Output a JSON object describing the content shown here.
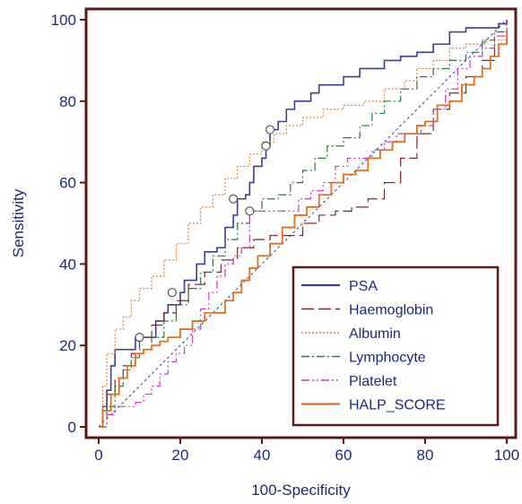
{
  "chart_data": {
    "type": "line",
    "xlabel": "100-Specificity",
    "ylabel": "Sensitivity",
    "xlim": [
      0,
      100
    ],
    "ylim": [
      0,
      100
    ],
    "xticks": [
      "0",
      "20",
      "40",
      "60",
      "80",
      "100"
    ],
    "yticks": [
      "0",
      "20",
      "40",
      "60",
      "80",
      "100"
    ],
    "grid": false,
    "legend_position": "bottom-right",
    "reference_line": [
      [
        0,
        0
      ],
      [
        100,
        100
      ]
    ],
    "series": [
      {
        "name": "PSA",
        "color": "#3a3f8f",
        "style": "solid",
        "points": [
          [
            0,
            0
          ],
          [
            1,
            4
          ],
          [
            2,
            9
          ],
          [
            3,
            15
          ],
          [
            4,
            19
          ],
          [
            7,
            19
          ],
          [
            9,
            22
          ],
          [
            12,
            22
          ],
          [
            14,
            26
          ],
          [
            16,
            28
          ],
          [
            17,
            30
          ],
          [
            19,
            30
          ],
          [
            20,
            33
          ],
          [
            21,
            36
          ],
          [
            24,
            40
          ],
          [
            26,
            43
          ],
          [
            29,
            44
          ],
          [
            31,
            49
          ],
          [
            33,
            52
          ],
          [
            34,
            56
          ],
          [
            36,
            57
          ],
          [
            37,
            60
          ],
          [
            38,
            64
          ],
          [
            40,
            66
          ],
          [
            41,
            69
          ],
          [
            42,
            73
          ],
          [
            44,
            75
          ],
          [
            46,
            78
          ],
          [
            48,
            80
          ],
          [
            50,
            80
          ],
          [
            52,
            82
          ],
          [
            54,
            84
          ],
          [
            58,
            84
          ],
          [
            60,
            86
          ],
          [
            62,
            86
          ],
          [
            64,
            88
          ],
          [
            68,
            88
          ],
          [
            70,
            90
          ],
          [
            74,
            91
          ],
          [
            78,
            92
          ],
          [
            82,
            94
          ],
          [
            86,
            97
          ],
          [
            90,
            98
          ],
          [
            94,
            98
          ],
          [
            98,
            99
          ],
          [
            100,
            100
          ]
        ],
        "markers": [
          [
            33,
            56
          ],
          [
            41,
            69
          ],
          [
            42,
            73
          ]
        ]
      },
      {
        "name": "Haemoglobin",
        "color": "#7a2a2a",
        "style": "longdash",
        "points": [
          [
            0,
            0
          ],
          [
            1,
            5
          ],
          [
            2,
            8
          ],
          [
            4,
            12
          ],
          [
            6,
            15
          ],
          [
            8,
            18
          ],
          [
            10,
            22
          ],
          [
            13,
            25
          ],
          [
            16,
            28
          ],
          [
            19,
            31
          ],
          [
            22,
            35
          ],
          [
            26,
            38
          ],
          [
            30,
            41
          ],
          [
            34,
            44
          ],
          [
            38,
            46
          ],
          [
            42,
            47
          ],
          [
            46,
            47
          ],
          [
            50,
            50
          ],
          [
            54,
            52
          ],
          [
            58,
            53
          ],
          [
            62,
            54
          ],
          [
            66,
            56
          ],
          [
            70,
            60
          ],
          [
            74,
            66
          ],
          [
            78,
            72
          ],
          [
            82,
            78
          ],
          [
            86,
            82
          ],
          [
            90,
            86
          ],
          [
            94,
            90
          ],
          [
            97,
            94
          ],
          [
            100,
            98
          ]
        ]
      },
      {
        "name": "Albumin",
        "color": "#e08030",
        "style": "dotted",
        "points": [
          [
            0,
            0
          ],
          [
            1,
            10
          ],
          [
            2,
            18
          ],
          [
            4,
            24
          ],
          [
            6,
            27
          ],
          [
            8,
            31
          ],
          [
            10,
            34
          ],
          [
            13,
            37
          ],
          [
            16,
            41
          ],
          [
            19,
            45
          ],
          [
            22,
            50
          ],
          [
            25,
            54
          ],
          [
            28,
            57
          ],
          [
            31,
            61
          ],
          [
            34,
            64
          ],
          [
            37,
            67
          ],
          [
            40,
            70
          ],
          [
            43,
            72
          ],
          [
            46,
            74
          ],
          [
            50,
            76
          ],
          [
            55,
            78
          ],
          [
            60,
            79
          ],
          [
            65,
            80
          ],
          [
            70,
            83
          ],
          [
            75,
            85
          ],
          [
            78,
            88
          ],
          [
            82,
            90
          ],
          [
            86,
            93
          ],
          [
            90,
            94
          ],
          [
            95,
            95
          ],
          [
            100,
            95
          ]
        ],
        "markers": [
          [
            18,
            33
          ]
        ]
      },
      {
        "name": "Lymphocyte",
        "color": "#2a7a3a",
        "style": "dashdot",
        "points": [
          [
            0,
            0
          ],
          [
            2,
            5
          ],
          [
            4,
            10
          ],
          [
            6,
            14
          ],
          [
            8,
            17
          ],
          [
            10,
            19
          ],
          [
            13,
            22
          ],
          [
            16,
            26
          ],
          [
            19,
            30
          ],
          [
            22,
            34
          ],
          [
            25,
            38
          ],
          [
            28,
            42
          ],
          [
            31,
            46
          ],
          [
            34,
            50
          ],
          [
            37,
            53
          ],
          [
            40,
            56
          ],
          [
            44,
            57
          ],
          [
            47,
            60
          ],
          [
            50,
            63
          ],
          [
            53,
            66
          ],
          [
            56,
            69
          ],
          [
            60,
            71
          ],
          [
            64,
            74
          ],
          [
            67,
            77
          ],
          [
            70,
            80
          ],
          [
            74,
            83
          ],
          [
            78,
            86
          ],
          [
            82,
            88
          ],
          [
            86,
            90
          ],
          [
            90,
            92
          ],
          [
            94,
            95
          ],
          [
            97,
            97
          ],
          [
            100,
            98
          ]
        ],
        "markers": [
          [
            10,
            22
          ]
        ]
      },
      {
        "name": "Platelet",
        "color": "#c83ac8",
        "style": "dashdotdot",
        "points": [
          [
            0,
            0
          ],
          [
            2,
            3
          ],
          [
            4,
            5
          ],
          [
            7,
            5
          ],
          [
            9,
            6
          ],
          [
            11,
            8
          ],
          [
            13,
            10
          ],
          [
            15,
            13
          ],
          [
            17,
            16
          ],
          [
            19,
            18
          ],
          [
            21,
            20
          ],
          [
            23,
            24
          ],
          [
            25,
            29
          ],
          [
            27,
            33
          ],
          [
            29,
            37
          ],
          [
            31,
            40
          ],
          [
            33,
            42
          ],
          [
            35,
            44
          ],
          [
            37,
            53
          ],
          [
            40,
            53
          ],
          [
            43,
            53
          ],
          [
            46,
            53
          ],
          [
            49,
            56
          ],
          [
            52,
            58
          ],
          [
            55,
            60
          ],
          [
            58,
            64
          ],
          [
            61,
            66
          ],
          [
            64,
            66
          ],
          [
            67,
            68
          ],
          [
            70,
            70
          ],
          [
            73,
            72
          ],
          [
            76,
            72
          ],
          [
            79,
            74
          ],
          [
            82,
            78
          ],
          [
            85,
            83
          ],
          [
            88,
            88
          ],
          [
            91,
            91
          ],
          [
            94,
            93
          ],
          [
            97,
            96
          ],
          [
            100,
            99
          ]
        ],
        "markers": [
          [
            37,
            53
          ]
        ]
      },
      {
        "name": "HALP_SCORE",
        "color": "#e07020",
        "style": "solid",
        "points": [
          [
            0,
            0
          ],
          [
            1,
            4
          ],
          [
            3,
            8
          ],
          [
            5,
            12
          ],
          [
            7,
            15
          ],
          [
            9,
            18
          ],
          [
            11,
            19
          ],
          [
            13,
            20
          ],
          [
            15,
            21
          ],
          [
            17,
            22
          ],
          [
            20,
            24
          ],
          [
            23,
            26
          ],
          [
            26,
            28
          ],
          [
            29,
            28
          ],
          [
            31,
            31
          ],
          [
            33,
            33
          ],
          [
            35,
            36
          ],
          [
            37,
            39
          ],
          [
            39,
            42
          ],
          [
            42,
            45
          ],
          [
            45,
            49
          ],
          [
            48,
            52
          ],
          [
            51,
            54
          ],
          [
            54,
            57
          ],
          [
            57,
            60
          ],
          [
            60,
            62
          ],
          [
            63,
            63
          ],
          [
            66,
            66
          ],
          [
            69,
            68
          ],
          [
            72,
            70
          ],
          [
            75,
            72
          ],
          [
            78,
            74
          ],
          [
            80,
            75
          ],
          [
            83,
            79
          ],
          [
            86,
            80
          ],
          [
            89,
            84
          ],
          [
            92,
            86
          ],
          [
            94,
            88
          ],
          [
            96,
            91
          ],
          [
            98,
            94
          ],
          [
            100,
            97
          ]
        ]
      }
    ]
  }
}
